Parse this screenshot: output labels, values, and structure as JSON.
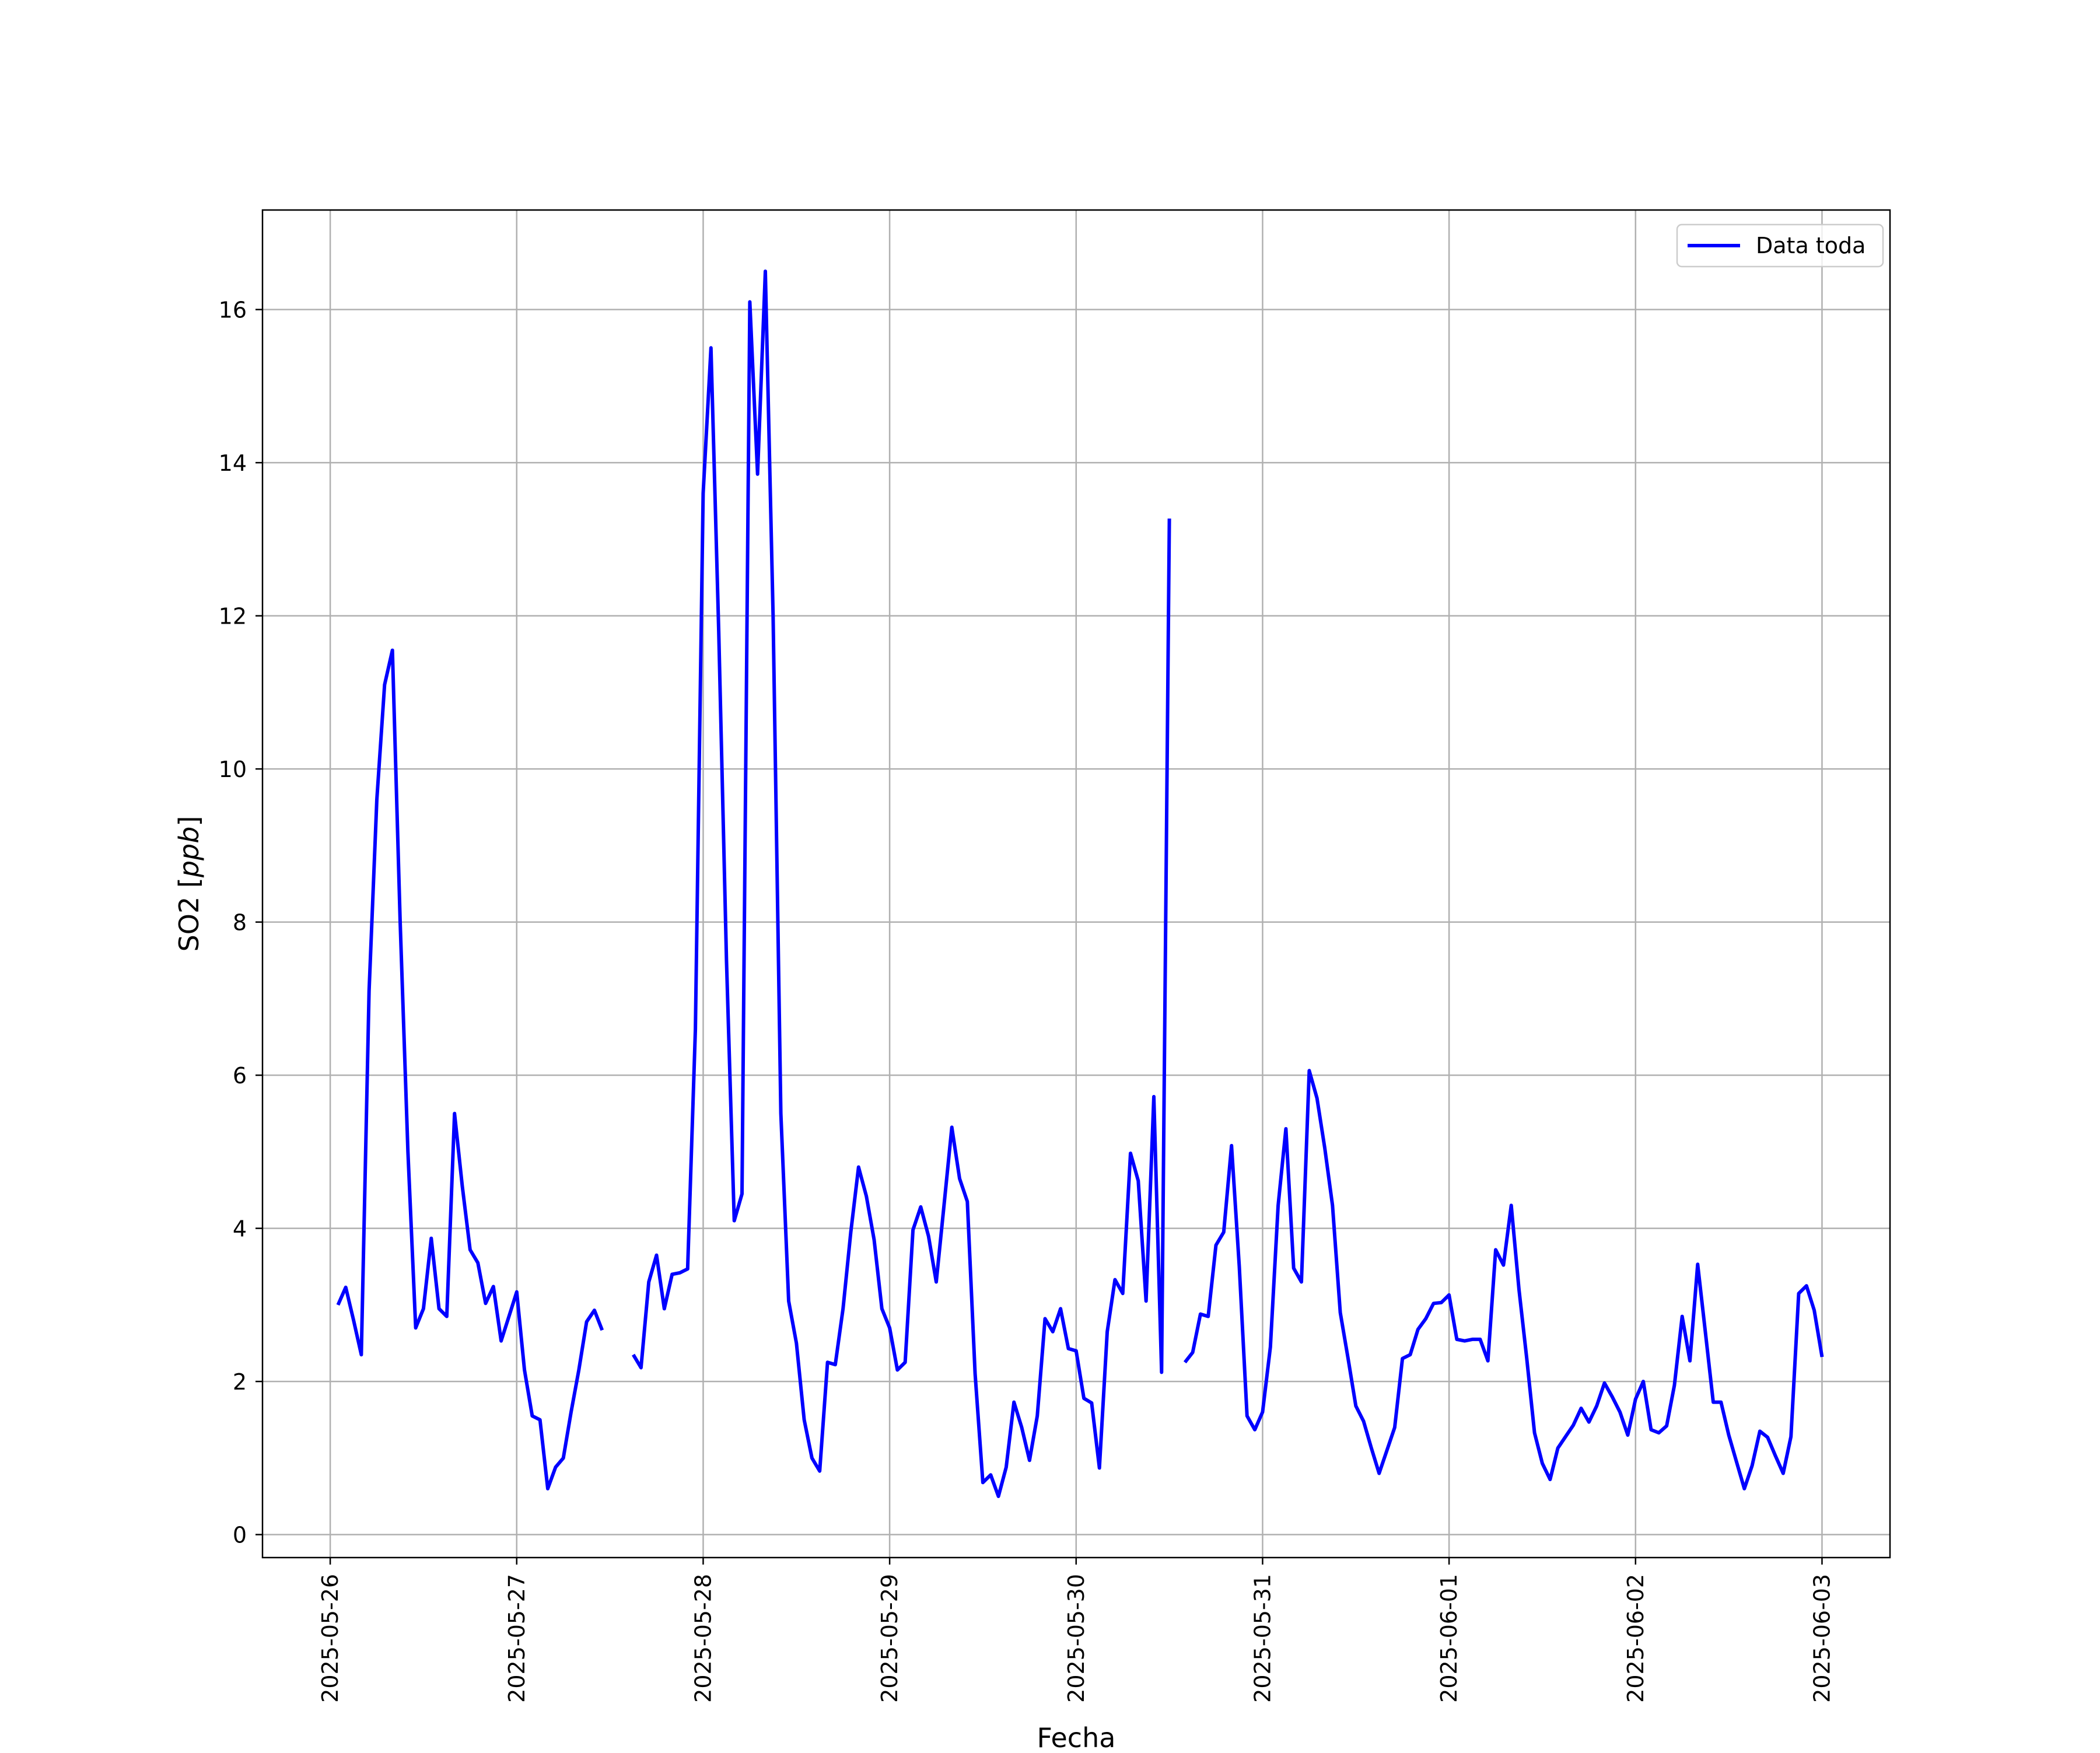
{
  "chart_data": {
    "type": "line",
    "title": "",
    "xlabel": "Fecha",
    "ylabel": "SO2 [ppb]",
    "ylabel_parts": {
      "prefix": "SO2 [",
      "unit": "ppb",
      "suffix": "]"
    },
    "x_ticks": [
      "2025-05-26",
      "2025-05-27",
      "2025-05-28",
      "2025-05-29",
      "2025-05-30",
      "2025-05-31",
      "2025-06-01",
      "2025-06-02",
      "2025-06-03"
    ],
    "y_ticks": [
      0,
      2,
      4,
      6,
      8,
      10,
      12,
      14,
      16
    ],
    "xlim": [
      "2025-05-25T15:17",
      "2025-06-03T08:45"
    ],
    "ylim": [
      -0.3,
      17.3
    ],
    "grid": true,
    "legend_position": "top-right",
    "series": [
      {
        "name": "Data toda",
        "color": "#0000ff",
        "points": [
          [
            "2025-05-26T01:00",
            3.0
          ],
          [
            "2025-05-26T02:00",
            3.23
          ],
          [
            "2025-05-26T03:00",
            2.8
          ],
          [
            "2025-05-26T04:00",
            2.35
          ],
          [
            "2025-05-26T05:00",
            7.1
          ],
          [
            "2025-05-26T06:00",
            9.6
          ],
          [
            "2025-05-26T07:00",
            11.1
          ],
          [
            "2025-05-26T08:00",
            11.55
          ],
          [
            "2025-05-26T09:00",
            8.0
          ],
          [
            "2025-05-26T10:00",
            5.0
          ],
          [
            "2025-05-26T11:00",
            2.7
          ],
          [
            "2025-05-26T12:00",
            2.95
          ],
          [
            "2025-05-26T13:00",
            3.87
          ],
          [
            "2025-05-26T14:00",
            2.95
          ],
          [
            "2025-05-26T15:00",
            2.85
          ],
          [
            "2025-05-26T16:00",
            5.5
          ],
          [
            "2025-05-26T17:00",
            4.55
          ],
          [
            "2025-05-26T18:00",
            3.72
          ],
          [
            "2025-05-26T19:00",
            3.55
          ],
          [
            "2025-05-26T20:00",
            3.02
          ],
          [
            "2025-05-26T21:00",
            3.24
          ],
          [
            "2025-05-26T22:00",
            2.53
          ],
          [
            "2025-05-26T23:00",
            2.85
          ],
          [
            "2025-05-27T00:00",
            3.17
          ],
          [
            "2025-05-27T01:00",
            2.15
          ],
          [
            "2025-05-27T02:00",
            1.55
          ],
          [
            "2025-05-27T03:00",
            1.5
          ],
          [
            "2025-05-27T04:00",
            0.6
          ],
          [
            "2025-05-27T05:00",
            0.88
          ],
          [
            "2025-05-27T06:00",
            1.0
          ],
          [
            "2025-05-27T07:00",
            1.6
          ],
          [
            "2025-05-27T08:00",
            2.15
          ],
          [
            "2025-05-27T09:00",
            2.78
          ],
          [
            "2025-05-27T10:00",
            2.93
          ],
          [
            "2025-05-27T11:00",
            2.67
          ],
          null,
          [
            "2025-05-27T15:00",
            2.35
          ],
          [
            "2025-05-27T16:00",
            2.18
          ],
          [
            "2025-05-27T17:00",
            3.3
          ],
          [
            "2025-05-27T18:00",
            3.65
          ],
          [
            "2025-05-27T19:00",
            2.95
          ],
          [
            "2025-05-27T20:00",
            3.4
          ],
          [
            "2025-05-27T21:00",
            3.42
          ],
          [
            "2025-05-27T22:00",
            3.47
          ],
          [
            "2025-05-27T23:00",
            6.6
          ],
          [
            "2025-05-28T00:00",
            13.6
          ],
          [
            "2025-05-28T01:00",
            15.5
          ],
          [
            "2025-05-28T02:00",
            11.8
          ],
          [
            "2025-05-28T03:00",
            7.5
          ],
          [
            "2025-05-28T04:00",
            4.1
          ],
          [
            "2025-05-28T05:00",
            4.45
          ],
          [
            "2025-05-28T06:00",
            16.1
          ],
          [
            "2025-05-28T07:00",
            13.85
          ],
          [
            "2025-05-28T08:00",
            16.5
          ],
          [
            "2025-05-28T09:00",
            12.0
          ],
          [
            "2025-05-28T10:00",
            5.5
          ],
          [
            "2025-05-28T11:00",
            3.05
          ],
          [
            "2025-05-28T12:00",
            2.5
          ],
          [
            "2025-05-28T13:00",
            1.5
          ],
          [
            "2025-05-28T14:00",
            1.0
          ],
          [
            "2025-05-28T15:00",
            0.83
          ],
          [
            "2025-05-28T16:00",
            2.25
          ],
          [
            "2025-05-28T17:00",
            2.22
          ],
          [
            "2025-05-28T18:00",
            2.95
          ],
          [
            "2025-05-28T19:00",
            3.95
          ],
          [
            "2025-05-28T20:00",
            4.8
          ],
          [
            "2025-05-28T21:00",
            4.42
          ],
          [
            "2025-05-28T22:00",
            3.85
          ],
          [
            "2025-05-28T23:00",
            2.95
          ],
          [
            "2025-05-29T00:00",
            2.7
          ],
          [
            "2025-05-29T01:00",
            2.15
          ],
          [
            "2025-05-29T02:00",
            2.25
          ],
          [
            "2025-05-29T03:00",
            3.98
          ],
          [
            "2025-05-29T04:00",
            4.28
          ],
          [
            "2025-05-29T05:00",
            3.9
          ],
          [
            "2025-05-29T06:00",
            3.3
          ],
          [
            "2025-05-29T07:00",
            4.3
          ],
          [
            "2025-05-29T08:00",
            5.32
          ],
          [
            "2025-05-29T09:00",
            4.65
          ],
          [
            "2025-05-29T10:00",
            4.35
          ],
          [
            "2025-05-29T11:00",
            2.1
          ],
          [
            "2025-05-29T12:00",
            0.68
          ],
          [
            "2025-05-29T13:00",
            0.78
          ],
          [
            "2025-05-29T14:00",
            0.5
          ],
          [
            "2025-05-29T15:00",
            0.88
          ],
          [
            "2025-05-29T16:00",
            1.73
          ],
          [
            "2025-05-29T17:00",
            1.4
          ],
          [
            "2025-05-29T18:00",
            0.97
          ],
          [
            "2025-05-29T19:00",
            1.55
          ],
          [
            "2025-05-29T20:00",
            2.82
          ],
          [
            "2025-05-29T21:00",
            2.65
          ],
          [
            "2025-05-29T22:00",
            2.95
          ],
          [
            "2025-05-29T23:00",
            2.43
          ],
          [
            "2025-05-30T00:00",
            2.4
          ],
          [
            "2025-05-30T01:00",
            1.78
          ],
          [
            "2025-05-30T02:00",
            1.72
          ],
          [
            "2025-05-30T03:00",
            0.87
          ],
          [
            "2025-05-30T04:00",
            2.65
          ],
          [
            "2025-05-30T05:00",
            3.33
          ],
          [
            "2025-05-30T06:00",
            3.15
          ],
          [
            "2025-05-30T07:00",
            4.98
          ],
          [
            "2025-05-30T08:00",
            4.62
          ],
          [
            "2025-05-30T09:00",
            3.05
          ],
          [
            "2025-05-30T10:00",
            5.72
          ],
          [
            "2025-05-30T11:00",
            2.12
          ],
          [
            "2025-05-30T12:00",
            13.27
          ],
          null,
          [
            "2025-05-30T14:00",
            2.25
          ],
          [
            "2025-05-30T15:00",
            2.38
          ],
          [
            "2025-05-30T16:00",
            2.88
          ],
          [
            "2025-05-30T17:00",
            2.85
          ],
          [
            "2025-05-30T18:00",
            3.78
          ],
          [
            "2025-05-30T19:00",
            3.95
          ],
          [
            "2025-05-30T20:00",
            5.08
          ],
          [
            "2025-05-30T21:00",
            3.5
          ],
          [
            "2025-05-30T22:00",
            1.55
          ],
          [
            "2025-05-30T23:00",
            1.37
          ],
          [
            "2025-05-31T00:00",
            1.6
          ],
          [
            "2025-05-31T01:00",
            2.45
          ],
          [
            "2025-05-31T02:00",
            4.3
          ],
          [
            "2025-05-31T03:00",
            5.3
          ],
          [
            "2025-05-31T04:00",
            3.48
          ],
          [
            "2025-05-31T05:00",
            3.3
          ],
          [
            "2025-05-31T06:00",
            6.06
          ],
          [
            "2025-05-31T07:00",
            5.7
          ],
          [
            "2025-05-31T08:00",
            5.05
          ],
          [
            "2025-05-31T09:00",
            4.3
          ],
          [
            "2025-05-31T10:00",
            2.9
          ],
          [
            "2025-05-31T11:00",
            2.3
          ],
          [
            "2025-05-31T12:00",
            1.68
          ],
          [
            "2025-05-31T13:00",
            1.48
          ],
          [
            "2025-05-31T14:00",
            1.13
          ],
          [
            "2025-05-31T15:00",
            0.8
          ],
          [
            "2025-05-31T16:00",
            1.1
          ],
          [
            "2025-05-31T17:00",
            1.4
          ],
          [
            "2025-05-31T18:00",
            2.3
          ],
          [
            "2025-05-31T19:00",
            2.35
          ],
          [
            "2025-05-31T20:00",
            2.68
          ],
          [
            "2025-05-31T21:00",
            2.82
          ],
          [
            "2025-05-31T22:00",
            3.02
          ],
          [
            "2025-05-31T23:00",
            3.03
          ],
          [
            "2025-06-01T00:00",
            3.13
          ],
          [
            "2025-06-01T01:00",
            2.55
          ],
          [
            "2025-06-01T02:00",
            2.53
          ],
          [
            "2025-06-01T03:00",
            2.55
          ],
          [
            "2025-06-01T04:00",
            2.55
          ],
          [
            "2025-06-01T05:00",
            2.27
          ],
          [
            "2025-06-01T06:00",
            3.72
          ],
          [
            "2025-06-01T07:00",
            3.52
          ],
          [
            "2025-06-01T08:00",
            4.3
          ],
          [
            "2025-06-01T09:00",
            3.2
          ],
          [
            "2025-06-01T10:00",
            2.3
          ],
          [
            "2025-06-01T11:00",
            1.33
          ],
          [
            "2025-06-01T12:00",
            0.93
          ],
          [
            "2025-06-01T13:00",
            0.72
          ],
          [
            "2025-06-01T14:00",
            1.13
          ],
          [
            "2025-06-01T15:00",
            1.28
          ],
          [
            "2025-06-01T16:00",
            1.43
          ],
          [
            "2025-06-01T17:00",
            1.65
          ],
          [
            "2025-06-01T18:00",
            1.47
          ],
          [
            "2025-06-01T19:00",
            1.68
          ],
          [
            "2025-06-01T20:00",
            1.98
          ],
          [
            "2025-06-01T21:00",
            1.8
          ],
          [
            "2025-06-01T22:00",
            1.6
          ],
          [
            "2025-06-01T23:00",
            1.3
          ],
          [
            "2025-06-02T00:00",
            1.77
          ],
          [
            "2025-06-02T01:00",
            2.0
          ],
          [
            "2025-06-02T02:00",
            1.37
          ],
          [
            "2025-06-02T03:00",
            1.33
          ],
          [
            "2025-06-02T04:00",
            1.42
          ],
          [
            "2025-06-02T05:00",
            1.95
          ],
          [
            "2025-06-02T06:00",
            2.85
          ],
          [
            "2025-06-02T07:00",
            2.27
          ],
          [
            "2025-06-02T08:00",
            3.53
          ],
          [
            "2025-06-02T09:00",
            2.63
          ],
          [
            "2025-06-02T10:00",
            1.73
          ],
          [
            "2025-06-02T11:00",
            1.73
          ],
          [
            "2025-06-02T12:00",
            1.3
          ],
          [
            "2025-06-02T13:00",
            0.95
          ],
          [
            "2025-06-02T14:00",
            0.6
          ],
          [
            "2025-06-02T15:00",
            0.9
          ],
          [
            "2025-06-02T16:00",
            1.35
          ],
          [
            "2025-06-02T17:00",
            1.27
          ],
          [
            "2025-06-02T18:00",
            1.03
          ],
          [
            "2025-06-02T19:00",
            0.8
          ],
          [
            "2025-06-02T20:00",
            1.28
          ],
          [
            "2025-06-02T21:00",
            3.15
          ],
          [
            "2025-06-02T22:00",
            3.25
          ],
          [
            "2025-06-02T23:00",
            2.93
          ],
          [
            "2025-06-03T00:00",
            2.32
          ]
        ]
      }
    ]
  }
}
